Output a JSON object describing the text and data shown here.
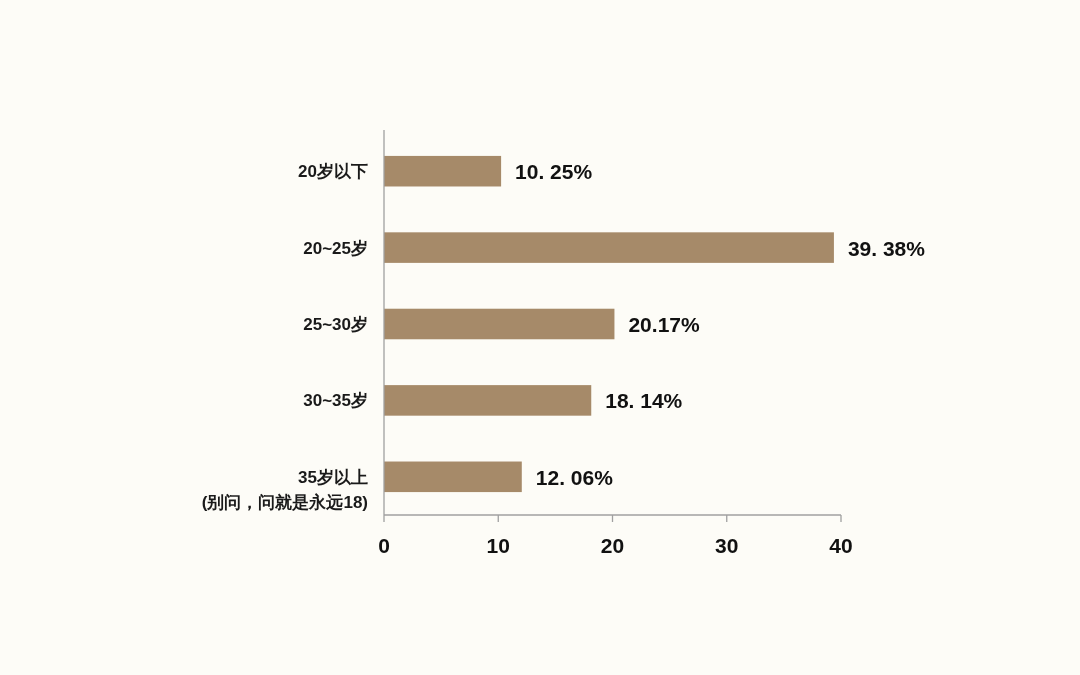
{
  "chart_data": {
    "type": "bar",
    "orientation": "horizontal",
    "categories": [
      "20岁以下",
      "20~25岁",
      "25~30岁",
      "30~35岁",
      "35岁以上\n(别问，问就是永远18)"
    ],
    "values": [
      10.25,
      39.38,
      20.17,
      18.14,
      12.06
    ],
    "color": "#a68a69",
    "value_labels": [
      "10. 25%",
      "39. 38%",
      "20.17%",
      "18. 14%",
      "12. 06%"
    ],
    "xlim": [
      0,
      40
    ],
    "xticks": [
      0,
      10,
      20,
      30,
      40
    ]
  }
}
